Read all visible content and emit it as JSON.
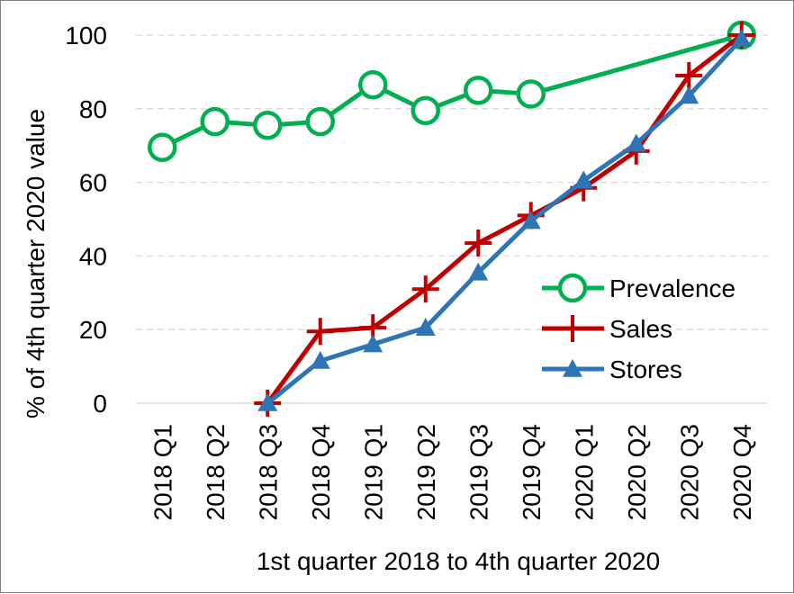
{
  "chart_data": {
    "type": "line",
    "xlabel": "1st quarter 2018 to 4th quarter 2020",
    "ylabel": "% of 4th quarter 2020 value",
    "ylim": [
      0,
      100
    ],
    "yticks": [
      "0",
      "20",
      "40",
      "60",
      "80",
      "100"
    ],
    "categories": [
      "2018 Q1",
      "2018 Q2",
      "2018 Q3",
      "2018 Q4",
      "2019 Q1",
      "2019 Q2",
      "2019 Q3",
      "2019 Q4",
      "2020 Q1",
      "2020 Q2",
      "2020 Q3",
      "2020 Q4"
    ],
    "grid": "horizontal dashed",
    "legend": "center-right",
    "series": [
      {
        "name": "Prevalence",
        "marker": "circle",
        "color": "#00b050",
        "values": [
          69.5,
          76.5,
          75.5,
          76.5,
          86.5,
          79.5,
          85,
          84,
          null,
          null,
          null,
          100
        ]
      },
      {
        "name": "Sales",
        "marker": "plus",
        "color": "#c00000",
        "values": [
          null,
          null,
          0,
          19.5,
          20.5,
          31,
          43.5,
          51,
          58.5,
          68.5,
          89,
          100
        ]
      },
      {
        "name": "Stores",
        "marker": "triangle",
        "color": "#2e75b6",
        "values": [
          null,
          null,
          0,
          11.5,
          16,
          20.5,
          35.5,
          49.5,
          60.5,
          70.5,
          83.5,
          99
        ]
      }
    ]
  }
}
